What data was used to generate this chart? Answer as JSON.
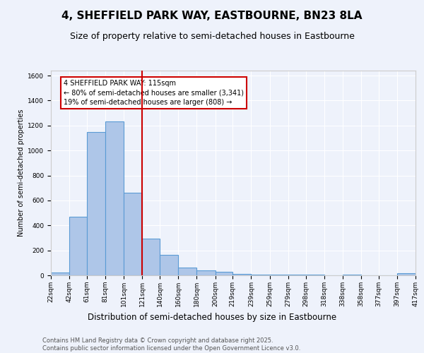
{
  "title": "4, SHEFFIELD PARK WAY, EASTBOURNE, BN23 8LA",
  "subtitle": "Size of property relative to semi-detached houses in Eastbourne",
  "xlabel": "Distribution of semi-detached houses by size in Eastbourne",
  "ylabel": "Number of semi-detached properties",
  "footer_line1": "Contains HM Land Registry data © Crown copyright and database right 2025.",
  "footer_line2": "Contains public sector information licensed under the Open Government Licence v3.0.",
  "annotation_line1": "4 SHEFFIELD PARK WAY: 115sqm",
  "annotation_line2": "← 80% of semi-detached houses are smaller (3,341)",
  "annotation_line3": "19% of semi-detached houses are larger (808) →",
  "property_size": 115,
  "red_line_x": 121,
  "bar_color": "#aec6e8",
  "bar_edge_color": "#5b9bd5",
  "background_color": "#eef2fb",
  "grid_color": "#ffffff",
  "bin_edges": [
    22,
    42,
    61,
    81,
    101,
    121,
    140,
    160,
    180,
    200,
    219,
    239,
    259,
    279,
    298,
    318,
    338,
    358,
    377,
    397,
    417
  ],
  "counts": [
    22,
    468,
    1148,
    1232,
    660,
    292,
    163,
    64,
    38,
    28,
    10,
    8,
    5,
    4,
    3,
    2,
    3,
    1,
    2,
    15
  ],
  "ylim": [
    0,
    1640
  ],
  "yticks": [
    0,
    200,
    400,
    600,
    800,
    1000,
    1200,
    1400,
    1600
  ],
  "annotation_box_color": "#ffffff",
  "annotation_box_edge_color": "#cc0000",
  "red_line_color": "#cc0000",
  "title_fontsize": 11,
  "subtitle_fontsize": 9,
  "footer_fontsize": 6,
  "ylabel_fontsize": 7,
  "xlabel_fontsize": 8.5,
  "tick_fontsize": 6.5,
  "annotation_fontsize": 7
}
